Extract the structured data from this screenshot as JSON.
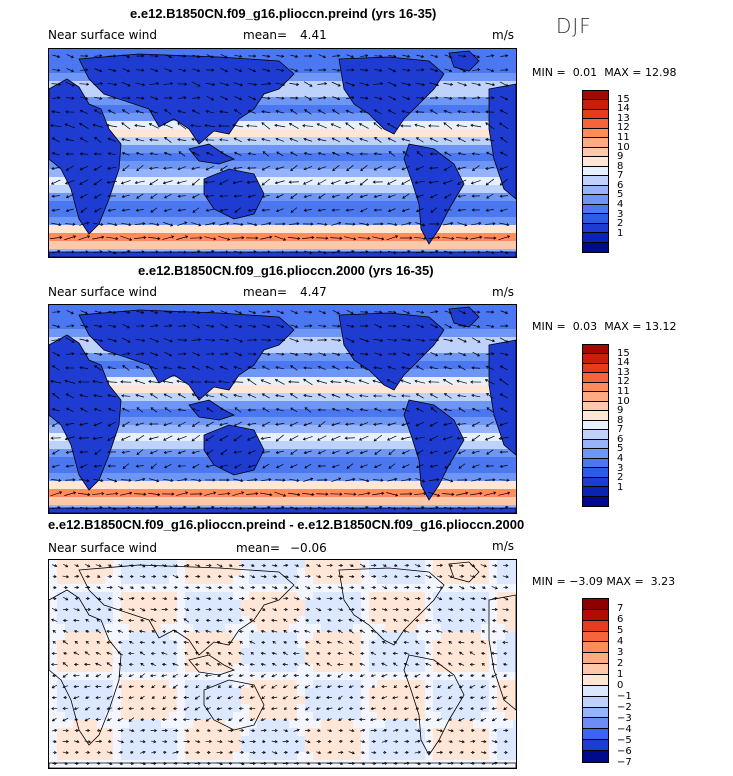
{
  "season": "DJF",
  "unit": "m/s",
  "variable": "Near surface wind",
  "mean_label": "mean=",
  "min_label": "MIN =",
  "max_label": "MAX =",
  "colors": {
    "seq_scale": [
      "#000a8c",
      "#0a23b4",
      "#1e3cd2",
      "#2d5ae6",
      "#4b78f0",
      "#6e96f5",
      "#96b4fa",
      "#bed2fc",
      "#e6f0ff",
      "#ffe6d7",
      "#ffc8aa",
      "#ffaa82",
      "#ff8c5a",
      "#f5643c",
      "#e63c1e",
      "#c81e0a",
      "#a00a00"
    ],
    "div_scale": [
      "#000a8c",
      "#1e3cd2",
      "#3c64f0",
      "#6e8cf5",
      "#96b4fa",
      "#bed2fc",
      "#dce8ff",
      "#ffe6d7",
      "#ffc8aa",
      "#ffaa82",
      "#ff8c5a",
      "#f5643c",
      "#e63c1e",
      "#b40a00",
      "#8c0000"
    ],
    "land_outline": "#000000"
  },
  "panels": [
    {
      "title": "e.e12.B1850CN.f09_g16.plioccn.preind (yrs 16-35)",
      "mean": "4.41",
      "min": "0.01",
      "max": "12.98",
      "ticks": [
        "15",
        "14",
        "13",
        "12",
        "11",
        "10",
        "9",
        "8",
        "7",
        "6",
        "5",
        "4",
        "3",
        "2",
        "1"
      ]
    },
    {
      "title": "e.e12.B1850CN.f09_g16.plioccn.2000 (yrs 16-35)",
      "mean": "4.47",
      "min": "0.03",
      "max": "13.12",
      "ticks": [
        "15",
        "14",
        "13",
        "12",
        "11",
        "10",
        "9",
        "8",
        "7",
        "6",
        "5",
        "4",
        "3",
        "2",
        "1"
      ]
    },
    {
      "title": "e.e12.B1850CN.f09_g16.plioccn.preind - e.e12.B1850CN.f09_g16.plioccn.2000",
      "mean": "−0.06",
      "min": "−3.09",
      "max": "3.23",
      "ticks": [
        "7",
        "6",
        "5",
        "4",
        "3",
        "2",
        "1",
        "0",
        "−1",
        "−2",
        "−3",
        "−4",
        "−5",
        "−6",
        "−7"
      ]
    }
  ],
  "chart_data": [
    {
      "type": "heatmap",
      "title": "e.e12.B1850CN.f09_g16.plioccn.preind (yrs 16-35)",
      "quantity": "Near surface wind",
      "units": "m/s",
      "season": "DJF",
      "mean": 4.41,
      "min": 0.01,
      "max": 12.98,
      "levels": [
        1,
        2,
        3,
        4,
        5,
        6,
        7,
        8,
        9,
        10,
        11,
        12,
        13,
        14,
        15
      ],
      "overlay": "wind vectors"
    },
    {
      "type": "heatmap",
      "title": "e.e12.B1850CN.f09_g16.plioccn.2000 (yrs 16-35)",
      "quantity": "Near surface wind",
      "units": "m/s",
      "season": "DJF",
      "mean": 4.47,
      "min": 0.03,
      "max": 13.12,
      "levels": [
        1,
        2,
        3,
        4,
        5,
        6,
        7,
        8,
        9,
        10,
        11,
        12,
        13,
        14,
        15
      ],
      "overlay": "wind vectors"
    },
    {
      "type": "heatmap",
      "title": "e.e12.B1850CN.f09_g16.plioccn.preind - e.e12.B1850CN.f09_g16.plioccn.2000",
      "quantity": "Near surface wind",
      "units": "m/s",
      "season": "DJF",
      "mean": -0.06,
      "min": -3.09,
      "max": 3.23,
      "levels": [
        -7,
        -6,
        -5,
        -4,
        -3,
        -2,
        -1,
        0,
        1,
        2,
        3,
        4,
        5,
        6,
        7
      ],
      "overlay": "wind vectors"
    }
  ]
}
